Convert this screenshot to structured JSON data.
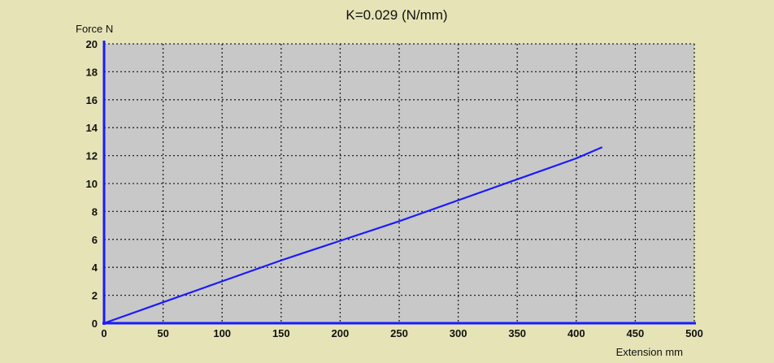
{
  "chart_data": {
    "type": "line",
    "title": "K=0.029  (N/mm)",
    "xlabel": "Extension mm",
    "ylabel": "Force N",
    "xlim": [
      0,
      500
    ],
    "ylim": [
      0,
      20
    ],
    "xticks": [
      0,
      50,
      100,
      150,
      200,
      250,
      300,
      350,
      400,
      450,
      500
    ],
    "yticks": [
      0,
      2,
      4,
      6,
      8,
      10,
      12,
      14,
      16,
      18,
      20
    ],
    "grid": true,
    "legend": "none",
    "series": [
      {
        "color": "#1a1aff",
        "x": [
          0,
          50,
          100,
          150,
          200,
          250,
          300,
          350,
          400,
          422
        ],
        "y": [
          0,
          1.5,
          3.0,
          4.5,
          5.9,
          7.3,
          8.8,
          10.3,
          11.8,
          12.6
        ]
      }
    ],
    "colors": {
      "plot_background": "#c8c8c8",
      "page_background": "#e6e4b6",
      "axis": "#1a1aff",
      "grid": "#222222"
    }
  }
}
